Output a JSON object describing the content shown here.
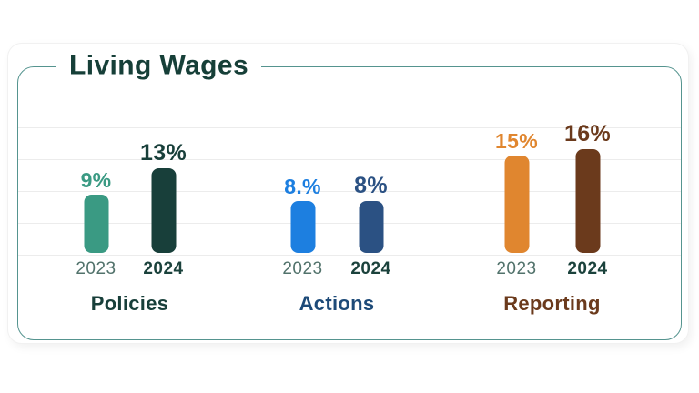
{
  "page_title": "Living Wages",
  "styles": {
    "frame_border_color": "#55948f",
    "title_color": "#163f38",
    "gridline_color": "#ececec",
    "year_2023_color": "#51726b",
    "year_2024_color": "#1b423c"
  },
  "chart_data": {
    "type": "bar",
    "title": "Living Wages",
    "unit": "%",
    "ylim": [
      0,
      20
    ],
    "grid": true,
    "legend_position": "none",
    "categories": [
      "Policies",
      "Actions",
      "Reporting"
    ],
    "series": [
      {
        "name": "2023",
        "values": [
          9,
          8,
          15
        ]
      },
      {
        "name": "2024",
        "values": [
          13,
          8,
          16
        ]
      }
    ],
    "groups": [
      {
        "label": "Policies",
        "label_color": "#183f3a",
        "bars": [
          {
            "year": "2023",
            "value": 9,
            "display": "9%",
            "color": "#3a9a83"
          },
          {
            "year": "2024",
            "value": 13,
            "display": "13%",
            "color": "#183f3a"
          }
        ]
      },
      {
        "label": "Actions",
        "label_color": "#1d4a78",
        "bars": [
          {
            "year": "2023",
            "value": 8,
            "display": "8.%",
            "color": "#1d7fe0"
          },
          {
            "year": "2024",
            "value": 8,
            "display": "8%",
            "color": "#2b5183"
          }
        ]
      },
      {
        "label": "Reporting",
        "label_color": "#6b3a1c",
        "bars": [
          {
            "year": "2023",
            "value": 15,
            "display": "15%",
            "color": "#e0862f"
          },
          {
            "year": "2024",
            "value": 16,
            "display": "16%",
            "color": "#6b3a1c"
          }
        ]
      }
    ]
  }
}
